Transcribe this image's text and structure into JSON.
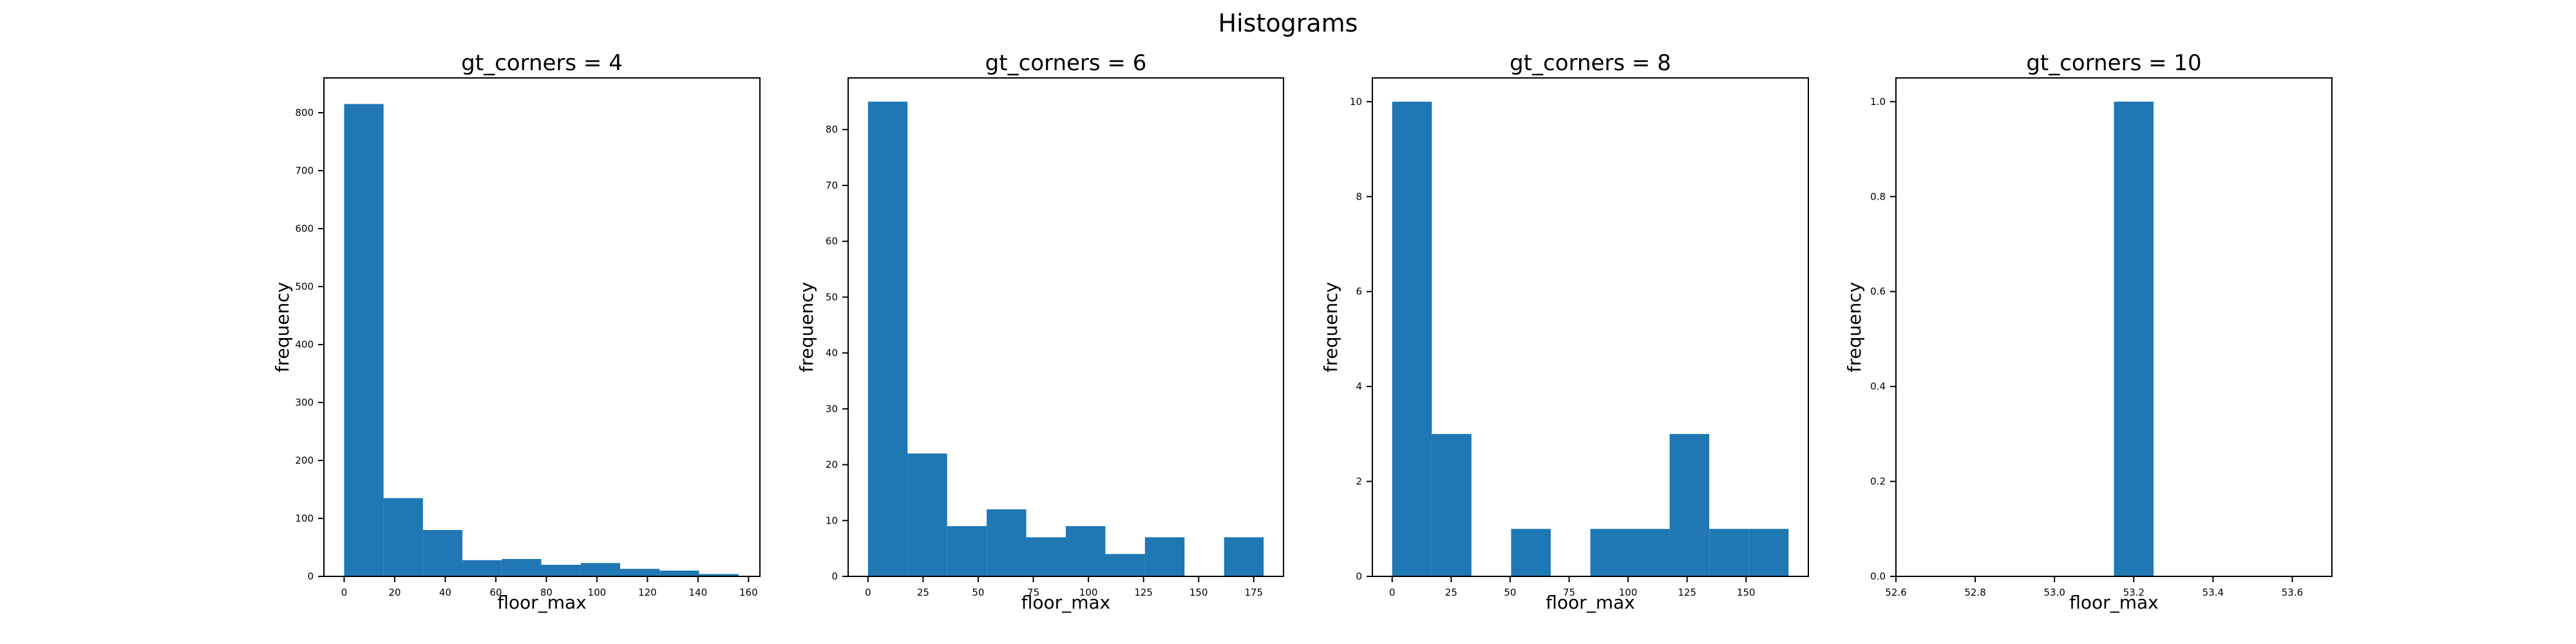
{
  "figure": {
    "title": "Histograms"
  },
  "chart_data": [
    {
      "type": "bar",
      "title": "gt_corners = 4",
      "xlabel": "floor_max",
      "ylabel": "frequency",
      "xlim": [
        -8,
        164.5
      ],
      "ylim": [
        0,
        860
      ],
      "xticks": [
        0,
        20,
        40,
        60,
        80,
        100,
        120,
        140,
        160
      ],
      "yticks": [
        0,
        100,
        200,
        300,
        400,
        500,
        600,
        700,
        800
      ],
      "bin_edges": [
        0,
        15.6,
        31.2,
        46.8,
        62.4,
        78.0,
        93.6,
        109.2,
        124.8,
        140.4,
        156.0
      ],
      "values": [
        815,
        135,
        80,
        28,
        30,
        20,
        23,
        13,
        10,
        4
      ],
      "grid": false,
      "color": "#1f77b4"
    },
    {
      "type": "bar",
      "title": "gt_corners = 6",
      "xlabel": "floor_max",
      "ylabel": "frequency",
      "xlim": [
        -9,
        188.5
      ],
      "ylim": [
        0,
        89.25
      ],
      "xticks": [
        0,
        25,
        50,
        75,
        100,
        125,
        150,
        175
      ],
      "yticks": [
        0,
        10,
        20,
        30,
        40,
        50,
        60,
        70,
        80
      ],
      "bin_edges": [
        0,
        17.95,
        35.9,
        53.85,
        71.8,
        89.75,
        107.7,
        125.65,
        143.6,
        161.55,
        179.5
      ],
      "values": [
        85,
        22,
        9,
        12,
        7,
        9,
        4,
        7,
        0,
        7
      ],
      "grid": false,
      "color": "#1f77b4"
    },
    {
      "type": "bar",
      "title": "gt_corners = 8",
      "xlabel": "floor_max",
      "ylabel": "frequency",
      "xlim": [
        -8.4,
        176.4
      ],
      "ylim": [
        0,
        10.5
      ],
      "xticks": [
        0,
        25,
        50,
        75,
        100,
        125,
        150
      ],
      "yticks": [
        0,
        2,
        4,
        6,
        8,
        10
      ],
      "bin_edges": [
        0,
        16.8,
        33.6,
        50.4,
        67.2,
        84.0,
        100.8,
        117.6,
        134.4,
        151.2,
        168.0
      ],
      "values": [
        10,
        3,
        0,
        1,
        0,
        1,
        1,
        3,
        1,
        1
      ],
      "grid": false,
      "color": "#1f77b4"
    },
    {
      "type": "bar",
      "title": "gt_corners = 10",
      "xlabel": "floor_max",
      "ylabel": "frequency",
      "xlim": [
        52.6,
        53.7
      ],
      "ylim": [
        0,
        1.05
      ],
      "xticks": [
        "52.6",
        "52.8",
        "53.0",
        "53.2",
        "53.4",
        "53.6"
      ],
      "yticks": [
        "0.0",
        "0.2",
        "0.4",
        "0.6",
        "0.8",
        "1.0"
      ],
      "bin_edges": [
        53.15,
        53.25
      ],
      "values": [
        1
      ],
      "grid": false,
      "color": "#1f77b4"
    }
  ]
}
